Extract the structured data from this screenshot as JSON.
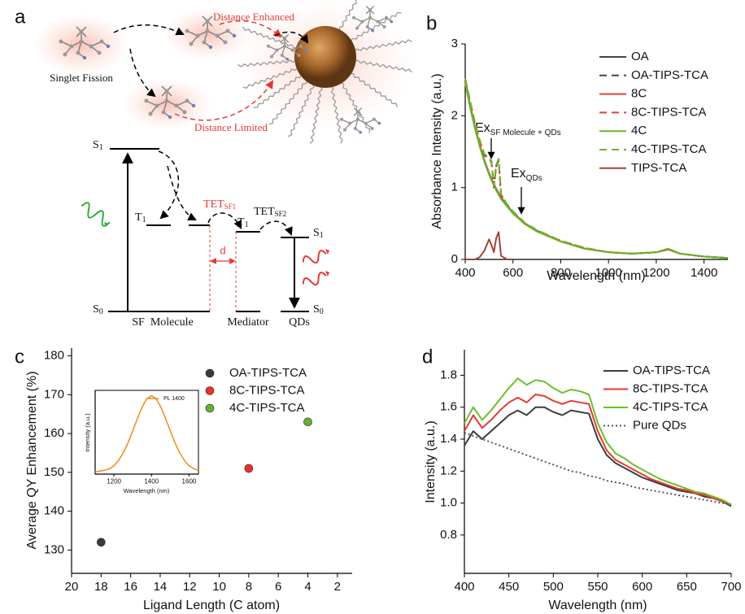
{
  "diagram": {
    "panel_label": "a",
    "top_labels": {
      "distance_enhanced": "Distance Enhanced",
      "singlet_fission": "Singlet Fission",
      "distance_limited": "Distance Limited"
    },
    "levels": {
      "sf_s1": {
        "text": "S",
        "sub": "1"
      },
      "sf_t1": {
        "text": "T",
        "sub": "1"
      },
      "med_t1": {
        "text": "T",
        "sub": "1"
      },
      "qd_s1": {
        "text": "S",
        "sub": "1"
      },
      "sf_s0": {
        "text": "S",
        "sub": "0"
      },
      "qd_s0": {
        "text": "S",
        "sub": "0"
      }
    },
    "processes": [
      {
        "text": "TET",
        "sub": "SF1"
      },
      {
        "text": "TET",
        "sub": "SF2"
      }
    ],
    "distance": "d",
    "bottom_labels": [
      "SF  Molecule",
      "Mediator",
      "QDs"
    ]
  },
  "chart_data": [
    {
      "type": "line",
      "panel_label": "b",
      "x_label": "Wavelength (nm)",
      "y_label": "Absorbance Intensity (a.u.)",
      "x": [
        400,
        420,
        440,
        460,
        480,
        500,
        510,
        520,
        530,
        540,
        550,
        575,
        600,
        650,
        700,
        800,
        900,
        1000,
        1100,
        1200,
        1250,
        1300,
        1400,
        1500
      ],
      "series": [
        {
          "name": "OA",
          "color": "#444444",
          "dash": "solid",
          "values": [
            2.5,
            2.15,
            1.85,
            1.6,
            1.38,
            1.2,
            1.12,
            1.05,
            0.98,
            0.92,
            0.86,
            0.75,
            0.65,
            0.5,
            0.4,
            0.25,
            0.15,
            0.1,
            0.08,
            0.1,
            0.14,
            0.08,
            0.04,
            0.02
          ]
        },
        {
          "name": "OA-TIPS-TCA",
          "color": "#444444",
          "dash": "dashed",
          "values": [
            2.5,
            2.2,
            1.9,
            1.65,
            1.45,
            1.4,
            1.35,
            1.0,
            1.3,
            1.38,
            0.9,
            0.76,
            0.66,
            0.5,
            0.4,
            0.26,
            0.16,
            0.1,
            0.08,
            0.1,
            0.14,
            0.08,
            0.04,
            0.02
          ]
        },
        {
          "name": "8C",
          "color": "#e0413a",
          "dash": "solid",
          "values": [
            2.48,
            2.14,
            1.84,
            1.6,
            1.37,
            1.19,
            1.11,
            1.04,
            0.97,
            0.91,
            0.85,
            0.74,
            0.64,
            0.5,
            0.39,
            0.25,
            0.15,
            0.1,
            0.08,
            0.1,
            0.14,
            0.08,
            0.04,
            0.02
          ]
        },
        {
          "name": "8C-TIPS-TCA",
          "color": "#e0413a",
          "dash": "dashed",
          "values": [
            2.5,
            2.2,
            1.9,
            1.66,
            1.46,
            1.41,
            1.36,
            1.02,
            1.31,
            1.39,
            0.9,
            0.76,
            0.66,
            0.5,
            0.4,
            0.26,
            0.16,
            0.1,
            0.08,
            0.1,
            0.14,
            0.08,
            0.04,
            0.02
          ]
        },
        {
          "name": "4C",
          "color": "#6ab42d",
          "dash": "solid",
          "values": [
            2.46,
            2.12,
            1.83,
            1.58,
            1.36,
            1.18,
            1.1,
            1.03,
            0.96,
            0.9,
            0.84,
            0.74,
            0.64,
            0.49,
            0.39,
            0.25,
            0.15,
            0.1,
            0.08,
            0.1,
            0.15,
            0.08,
            0.04,
            0.02
          ]
        },
        {
          "name": "4C-TIPS-TCA",
          "color": "#6ab42d",
          "dash": "dashed",
          "values": [
            2.52,
            2.22,
            1.92,
            1.67,
            1.47,
            1.42,
            1.37,
            1.02,
            1.32,
            1.4,
            0.91,
            0.77,
            0.67,
            0.51,
            0.41,
            0.26,
            0.16,
            0.1,
            0.08,
            0.1,
            0.15,
            0.08,
            0.04,
            0.02
          ]
        },
        {
          "name": "TIPS-TCA",
          "color": "#a0453a",
          "dash": "solid",
          "values": [
            0,
            0,
            0,
            0.03,
            0.12,
            0.28,
            0.2,
            0.1,
            0.3,
            0.38,
            0.05,
            0,
            0,
            null,
            null,
            null,
            null,
            null,
            null,
            null,
            null,
            null,
            null,
            null
          ]
        }
      ],
      "xlim": [
        400,
        1500
      ],
      "xticks": [
        400,
        600,
        800,
        1000,
        1200,
        1400
      ],
      "ylim": [
        0,
        3
      ],
      "yticks": [
        0,
        1,
        2,
        3
      ],
      "legend": "upper right",
      "annotations": [
        {
          "text": "Ex",
          "sub": "SF Molecule + QDs"
        },
        {
          "text": "Ex",
          "sub": "QDs"
        }
      ]
    },
    {
      "type": "scatter",
      "panel_label": "c",
      "x_label": "Ligand Length (C atom)",
      "y_label": "Average QY Enhancement (%)",
      "series": [
        {
          "name": "OA-TIPS-TCA",
          "color": "#3a3a3a",
          "x": [
            18
          ],
          "values": [
            132
          ]
        },
        {
          "name": "8C-TIPS-TCA",
          "color": "#e8322a",
          "x": [
            8
          ],
          "values": [
            151
          ]
        },
        {
          "name": "4C-TIPS-TCA",
          "color": "#62b22f",
          "x": [
            4
          ],
          "values": [
            163
          ]
        }
      ],
      "xlim": [
        20,
        1
      ],
      "xticks": [
        20,
        18,
        16,
        14,
        12,
        10,
        8,
        6,
        4,
        2
      ],
      "ylim": [
        124,
        182
      ],
      "yticks": [
        130,
        140,
        150,
        160,
        170,
        180
      ],
      "legend": "upper left"
    },
    {
      "type": "line",
      "x_label": "Wavelength (nm)",
      "y_label": "Intensity (a.u.)",
      "x": [
        1100,
        1125,
        1150,
        1175,
        1200,
        1225,
        1250,
        1275,
        1300,
        1325,
        1350,
        1375,
        1400,
        1425,
        1450,
        1475,
        1500,
        1525,
        1550,
        1575,
        1600,
        1625,
        1650
      ],
      "series": [
        {
          "name": "PL 1400",
          "color": "#f08a1c",
          "dash": "solid",
          "values": [
            0.03,
            0.04,
            0.05,
            0.07,
            0.11,
            0.18,
            0.28,
            0.41,
            0.57,
            0.73,
            0.88,
            0.99,
            1.03,
            0.99,
            0.88,
            0.73,
            0.57,
            0.41,
            0.28,
            0.18,
            0.11,
            0.07,
            0.05
          ]
        }
      ],
      "xlim": [
        1100,
        1650
      ],
      "xticks": [
        1200,
        1400,
        1600
      ],
      "ylim": [
        0,
        1.1
      ],
      "legend": "upper right"
    },
    {
      "type": "line",
      "panel_label": "d",
      "x_label": "Wavelength (nm)",
      "y_label": "Intensity (a.u.)",
      "x": [
        400,
        410,
        420,
        430,
        440,
        450,
        460,
        470,
        480,
        490,
        500,
        510,
        520,
        530,
        540,
        550,
        560,
        570,
        580,
        590,
        600,
        610,
        620,
        630,
        640,
        650,
        660,
        670,
        680,
        690,
        700
      ],
      "series": [
        {
          "name": "OA-TIPS-TCA",
          "color": "#3d3d3d",
          "dash": "solid",
          "values": [
            1.36,
            1.45,
            1.4,
            1.45,
            1.5,
            1.55,
            1.58,
            1.55,
            1.6,
            1.6,
            1.57,
            1.55,
            1.58,
            1.57,
            1.56,
            1.4,
            1.3,
            1.25,
            1.22,
            1.19,
            1.16,
            1.14,
            1.12,
            1.1,
            1.08,
            1.07,
            1.06,
            1.04,
            1.03,
            1.01,
            0.98
          ]
        },
        {
          "name": "8C-TIPS-TCA",
          "color": "#e33b35",
          "dash": "solid",
          "values": [
            1.45,
            1.55,
            1.47,
            1.52,
            1.58,
            1.63,
            1.66,
            1.63,
            1.68,
            1.67,
            1.64,
            1.62,
            1.64,
            1.63,
            1.62,
            1.45,
            1.33,
            1.27,
            1.24,
            1.21,
            1.18,
            1.15,
            1.13,
            1.11,
            1.09,
            1.08,
            1.06,
            1.05,
            1.03,
            1.01,
            0.99
          ]
        },
        {
          "name": "4C-TIPS-TCA",
          "color": "#6cbf2b",
          "dash": "solid",
          "values": [
            1.5,
            1.6,
            1.52,
            1.58,
            1.65,
            1.72,
            1.78,
            1.74,
            1.77,
            1.76,
            1.72,
            1.69,
            1.71,
            1.7,
            1.68,
            1.5,
            1.38,
            1.31,
            1.28,
            1.24,
            1.21,
            1.18,
            1.15,
            1.13,
            1.11,
            1.09,
            1.07,
            1.06,
            1.04,
            1.02,
            0.99
          ]
        },
        {
          "name": "Pure QDs",
          "color": "#555555",
          "dash": "dotted",
          "values": [
            1.44,
            1.42,
            1.4,
            1.38,
            1.36,
            1.34,
            1.32,
            1.3,
            1.28,
            1.26,
            1.24,
            1.22,
            1.2,
            1.19,
            1.17,
            1.16,
            1.14,
            1.13,
            1.12,
            1.1,
            1.09,
            1.08,
            1.07,
            1.06,
            1.05,
            1.04,
            1.03,
            1.02,
            1.01,
            1.0,
            0.99
          ]
        }
      ],
      "xlim": [
        400,
        700
      ],
      "xticks": [
        400,
        450,
        500,
        550,
        600,
        650,
        700
      ],
      "ylim": [
        0.56,
        1.96
      ],
      "yticks": [
        0.8,
        {
          "value": 1,
          "label": "1.0"
        },
        1.2,
        1.4,
        1.6,
        1.8
      ],
      "legend": "upper right"
    }
  ]
}
